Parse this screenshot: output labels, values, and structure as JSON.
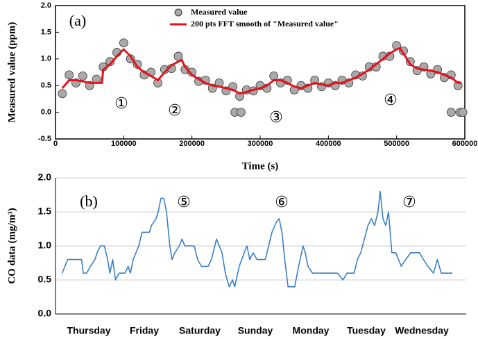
{
  "chart_data": [
    {
      "type": "scatter",
      "title": "(a)",
      "xlabel": "Time (s)",
      "ylabel": "Measured value (ppm)",
      "xlim": [
        0,
        600000
      ],
      "ylim": [
        -0.5,
        2.0
      ],
      "xticks": [
        0,
        100000,
        200000,
        300000,
        400000,
        500000,
        600000
      ],
      "yticks": [
        -0.5,
        {
          "value": 0,
          "label": "0.0"
        },
        0.5,
        {
          "value": 1,
          "label": "1.0"
        },
        1.5,
        {
          "value": 2,
          "label": "2.0"
        }
      ],
      "annotations": [
        "①",
        "②",
        "③",
        "④"
      ],
      "legend": "upper center",
      "series": [
        {
          "name": "Measured value",
          "type": "scatter",
          "color": "#a9a9a9",
          "x": [
            10000,
            20000,
            30000,
            40000,
            50000,
            60000,
            70000,
            80000,
            90000,
            100000,
            110000,
            120000,
            130000,
            140000,
            150000,
            160000,
            170000,
            180000,
            190000,
            200000,
            210000,
            220000,
            230000,
            240000,
            250000,
            260000,
            270000,
            280000,
            290000,
            300000,
            310000,
            320000,
            330000,
            340000,
            350000,
            360000,
            370000,
            380000,
            390000,
            400000,
            410000,
            420000,
            430000,
            440000,
            450000,
            460000,
            470000,
            480000,
            490000,
            500000,
            510000,
            520000,
            530000,
            540000,
            550000,
            560000,
            570000,
            580000,
            590000,
            263000,
            272000,
            580000,
            593000,
            597000
          ],
          "values": [
            0.35,
            0.7,
            0.55,
            0.68,
            0.5,
            0.62,
            0.85,
            0.95,
            1.12,
            1.3,
            1.0,
            0.9,
            0.7,
            0.75,
            0.55,
            0.8,
            0.82,
            1.05,
            0.8,
            0.75,
            0.58,
            0.6,
            0.45,
            0.55,
            0.4,
            0.48,
            0.3,
            0.42,
            0.4,
            0.5,
            0.45,
            0.68,
            0.55,
            0.6,
            0.42,
            0.5,
            0.45,
            0.6,
            0.48,
            0.55,
            0.5,
            0.6,
            0.55,
            0.7,
            0.68,
            0.85,
            0.85,
            1.05,
            1.05,
            1.25,
            1.15,
            0.95,
            0.78,
            0.85,
            0.72,
            0.8,
            0.65,
            0.7,
            0.5,
            0,
            0,
            0,
            0,
            0
          ]
        },
        {
          "name": "200 pts FFT smooth of \"Measured value\"",
          "type": "line",
          "color": "#e8101a",
          "x": [
            10000,
            20000,
            30000,
            40000,
            50000,
            60000,
            68000,
            70000,
            80000,
            90000,
            100000,
            110000,
            120000,
            130000,
            140000,
            150000,
            160000,
            170000,
            180000,
            185000,
            190000,
            200000,
            210000,
            220000,
            230000,
            240000,
            250000,
            260000,
            270000,
            280000,
            290000,
            300000,
            310000,
            320000,
            330000,
            340000,
            350000,
            360000,
            370000,
            380000,
            390000,
            400000,
            410000,
            420000,
            430000,
            440000,
            450000,
            460000,
            470000,
            480000,
            490000,
            500000,
            505000,
            510000,
            520000,
            530000,
            540000,
            550000,
            560000,
            570000,
            580000,
            590000,
            595000
          ],
          "values": [
            0.45,
            0.6,
            0.6,
            0.58,
            0.55,
            0.55,
            0.55,
            0.8,
            0.9,
            1.05,
            1.18,
            1.05,
            0.85,
            0.75,
            0.68,
            0.6,
            0.75,
            0.88,
            0.95,
            0.98,
            0.85,
            0.7,
            0.62,
            0.55,
            0.5,
            0.48,
            0.45,
            0.42,
            0.35,
            0.38,
            0.42,
            0.45,
            0.5,
            0.6,
            0.6,
            0.55,
            0.48,
            0.45,
            0.5,
            0.55,
            0.52,
            0.5,
            0.55,
            0.55,
            0.6,
            0.65,
            0.72,
            0.8,
            0.9,
            1.0,
            1.1,
            1.18,
            1.2,
            1.1,
            0.9,
            0.82,
            0.8,
            0.78,
            0.75,
            0.7,
            0.65,
            0.55,
            0.55
          ]
        }
      ]
    },
    {
      "type": "line",
      "title": "(b)",
      "ylabel": "CO data (mg/m³)",
      "xlim": [
        -0.6,
        6.8
      ],
      "ylim": [
        0,
        2.0
      ],
      "xticks": [
        {
          "value": 0,
          "label": "Thursday"
        },
        {
          "value": 1,
          "label": "Friday"
        },
        {
          "value": 2,
          "label": "Saturday"
        },
        {
          "value": 3,
          "label": "Sunday"
        },
        {
          "value": 4,
          "label": "Monday"
        },
        {
          "value": 5,
          "label": "Tuesday"
        },
        {
          "value": 6,
          "label": "Wednesday"
        }
      ],
      "yticks": [
        {
          "value": 0,
          "label": "0.0"
        },
        0.5,
        {
          "value": 1,
          "label": "1.0"
        },
        1.5,
        {
          "value": 2,
          "label": "2.0"
        }
      ],
      "grid": true,
      "annotations": [
        "⑤",
        "⑥",
        "⑦"
      ],
      "series": [
        {
          "color": "#3a7fc8",
          "x": [
            -0.48,
            -0.38,
            -0.13,
            -0.1,
            -0.04,
            0.03,
            0.11,
            0.15,
            0.21,
            0.28,
            0.34,
            0.38,
            0.43,
            0.48,
            0.55,
            0.65,
            0.71,
            0.75,
            0.8,
            0.85,
            0.9,
            0.96,
            1.09,
            1.13,
            1.21,
            1.25,
            1.3,
            1.35,
            1.4,
            1.46,
            1.5,
            1.55,
            1.63,
            1.68,
            1.73,
            1.9,
            1.96,
            2.03,
            2.15,
            2.21,
            2.3,
            2.4,
            2.46,
            2.53,
            2.59,
            2.63,
            2.71,
            2.8,
            2.85,
            2.9,
            2.96,
            3.03,
            3.18,
            3.21,
            3.3,
            3.38,
            3.43,
            3.48,
            3.53,
            3.59,
            3.71,
            3.78,
            3.86,
            3.9,
            3.95,
            4.03,
            4.38,
            4.48,
            4.58,
            4.65,
            4.78,
            4.84,
            4.9,
            5.03,
            5.09,
            5.15,
            5.21,
            5.25,
            5.3,
            5.35,
            5.4,
            5.46,
            5.53,
            5.63,
            5.71,
            5.8,
            5.96,
            6.03,
            6.11,
            6.21,
            6.28,
            6.35,
            6.55
          ],
          "values": [
            0.6,
            0.8,
            0.8,
            0.6,
            0.6,
            0.7,
            0.8,
            0.9,
            1.0,
            1.0,
            0.8,
            0.6,
            0.8,
            0.5,
            0.6,
            0.6,
            0.7,
            0.6,
            0.8,
            0.9,
            1.0,
            1.2,
            1.2,
            1.3,
            1.4,
            1.5,
            1.7,
            1.7,
            1.5,
            1.0,
            0.8,
            0.9,
            1.0,
            1.1,
            1.0,
            1.0,
            0.8,
            0.7,
            0.7,
            0.8,
            1.1,
            0.9,
            0.6,
            0.4,
            0.5,
            0.4,
            0.7,
            0.9,
            1.0,
            0.8,
            0.9,
            0.8,
            0.8,
            0.9,
            1.2,
            1.35,
            1.4,
            1.2,
            0.8,
            0.4,
            0.4,
            0.7,
            1.0,
            0.9,
            0.7,
            0.6,
            0.6,
            0.6,
            0.5,
            0.6,
            0.6,
            0.8,
            0.9,
            1.3,
            1.4,
            1.3,
            1.5,
            1.8,
            1.4,
            1.3,
            1.5,
            0.9,
            0.9,
            0.7,
            0.8,
            0.9,
            0.9,
            0.8,
            0.7,
            0.6,
            0.8,
            0.6,
            0.6
          ]
        }
      ]
    }
  ]
}
